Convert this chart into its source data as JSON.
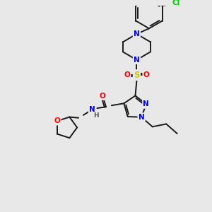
{
  "background_color": "#e8e8e8",
  "atom_colors": {
    "N": "#0000FF",
    "O": "#FF0000",
    "S": "#CCCC00",
    "Cl": "#00CC00",
    "C": "#1a1a1a",
    "H": "#555555"
  },
  "bond_lw": 1.4,
  "font_size": 7.5
}
